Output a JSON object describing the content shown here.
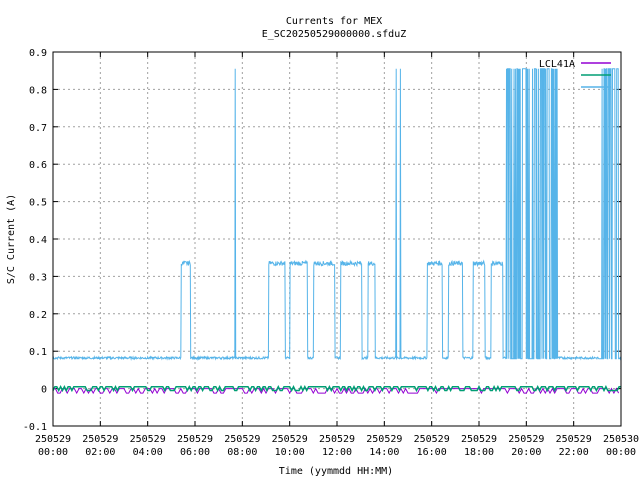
{
  "chart_data": {
    "type": "line",
    "title": "Currents for MEX",
    "subtitle": "E_SC20250529000000.sfduZ",
    "xlabel": "Time (yymmdd HH:MM)",
    "ylabel": "S/C Current (A)",
    "ylim": [
      -0.1,
      0.9
    ],
    "yticks": [
      "-0.1",
      "0",
      "0.1",
      "0.2",
      "0.3",
      "0.4",
      "0.5",
      "0.6",
      "0.7",
      "0.8",
      "0.9"
    ],
    "xlim_hours": [
      0,
      24
    ],
    "xticks": [
      {
        "date": "250529",
        "time": "00:00"
      },
      {
        "date": "250529",
        "time": "02:00"
      },
      {
        "date": "250529",
        "time": "04:00"
      },
      {
        "date": "250529",
        "time": "06:00"
      },
      {
        "date": "250529",
        "time": "08:00"
      },
      {
        "date": "250529",
        "time": "10:00"
      },
      {
        "date": "250529",
        "time": "12:00"
      },
      {
        "date": "250529",
        "time": "14:00"
      },
      {
        "date": "250529",
        "time": "16:00"
      },
      {
        "date": "250529",
        "time": "18:00"
      },
      {
        "date": "250529",
        "time": "20:00"
      },
      {
        "date": "250529",
        "time": "22:00"
      },
      {
        "date": "250530",
        "time": "00:00"
      }
    ],
    "grid": true,
    "legend_position": "top-right",
    "series": [
      {
        "name": "LCL41A",
        "color": "#9400d3",
        "baseline": 0.0
      },
      {
        "name": "",
        "color": "#009e73",
        "baseline": 0.005
      },
      {
        "name": "",
        "color": "#56b4e9",
        "baseline": 0.082,
        "levels": [
          {
            "start": 5.4,
            "end": 5.8,
            "value": 0.335
          },
          {
            "start": 9.1,
            "end": 9.8,
            "value": 0.335
          },
          {
            "start": 10.0,
            "end": 10.75,
            "value": 0.335
          },
          {
            "start": 11.0,
            "end": 11.9,
            "value": 0.335
          },
          {
            "start": 12.15,
            "end": 13.05,
            "value": 0.335
          },
          {
            "start": 13.3,
            "end": 13.6,
            "value": 0.335
          },
          {
            "start": 15.8,
            "end": 16.45,
            "value": 0.335
          },
          {
            "start": 16.7,
            "end": 17.3,
            "value": 0.335
          },
          {
            "start": 17.75,
            "end": 18.25,
            "value": 0.335
          },
          {
            "start": 18.5,
            "end": 19.0,
            "value": 0.335
          }
        ],
        "spikes": [
          {
            "x": 7.7,
            "value": 0.855
          },
          {
            "x": 14.5,
            "value": 0.855
          },
          {
            "x": 14.68,
            "value": 0.855
          }
        ],
        "burst": {
          "start": 19.15,
          "end": 21.3,
          "high": 0.855,
          "low": 0.08
        },
        "burst2": {
          "start": 23.05,
          "end": 23.9,
          "high": 0.855,
          "low": 0.08
        }
      }
    ]
  }
}
